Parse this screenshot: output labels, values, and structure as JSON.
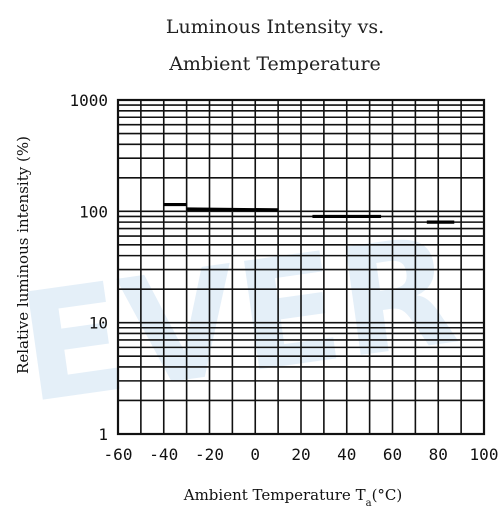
{
  "watermark": "EVER",
  "chart_data": {
    "type": "line",
    "title_line1": "Luminous Intensity vs.",
    "title_line2": "Ambient Temperature",
    "xlabel": "Ambient Temperature T",
    "xlabel_sub": "a",
    "xlabel_unit": "(°C)",
    "ylabel": "Relative luminous intensity (%)",
    "xlim": [
      -60,
      100
    ],
    "ylim": [
      1,
      1000
    ],
    "yscale": "log",
    "grid": true,
    "x_ticks": [
      "-60",
      "-40",
      "-20",
      "0",
      "20",
      "40",
      "60",
      "80",
      "100"
    ],
    "y_ticks": [
      "1",
      "10",
      "100",
      "1000"
    ],
    "series": [
      {
        "segments": [
          {
            "x": [
              -40,
              -30
            ],
            "y": [
              115,
              115
            ]
          },
          {
            "x": [
              -30,
              10
            ],
            "y": [
              105,
              103
            ]
          },
          {
            "x": [
              25,
              55
            ],
            "y": [
              90,
              90
            ]
          },
          {
            "x": [
              75,
              87
            ],
            "y": [
              80,
              80
            ]
          }
        ]
      }
    ]
  }
}
